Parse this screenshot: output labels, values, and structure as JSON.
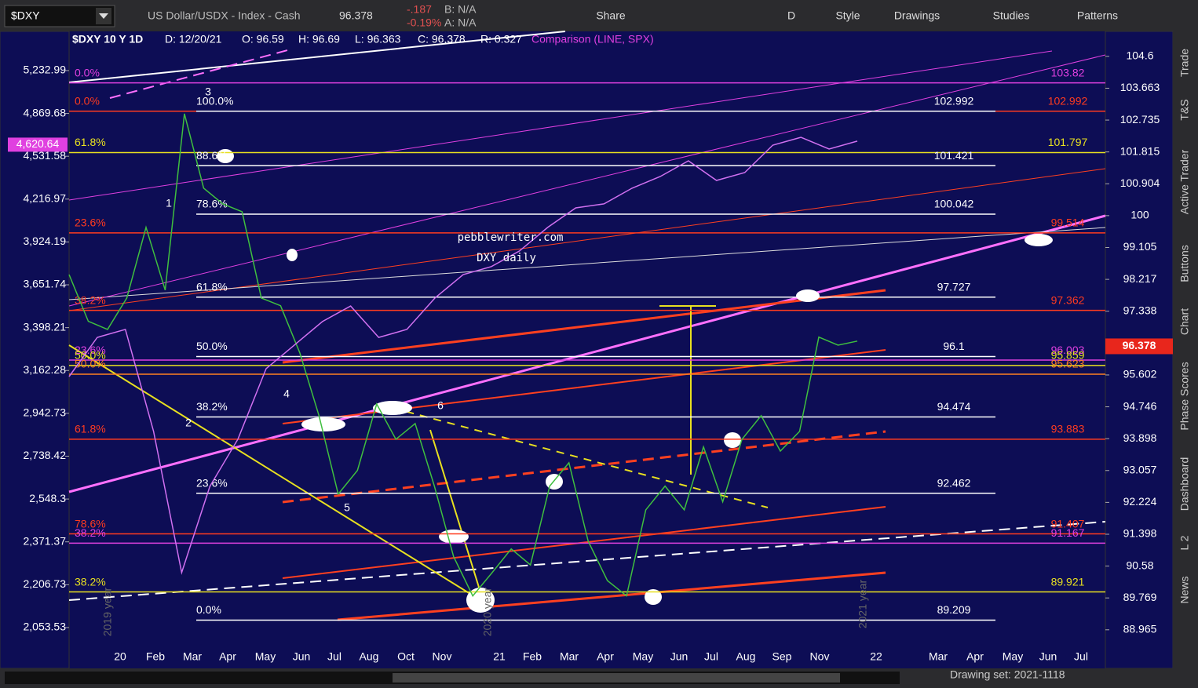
{
  "toolbar": {
    "symbol": "$DXY",
    "description": "US Dollar/USDX - Index - Cash",
    "last": "96.378",
    "change": "-.187",
    "change_pct": "-0.19%",
    "bid": "B: N/A",
    "ask": "A: N/A",
    "buttons": [
      "Share",
      "D",
      "Style",
      "Drawings",
      "Studies",
      "Patterns"
    ]
  },
  "chart_header": {
    "title": "$DXY 10 Y 1D",
    "fields": [
      "D: 12/20/21",
      "O: 96.59",
      "H: 96.69",
      "L: 96.363",
      "C: 96.378",
      "R: 0.327"
    ],
    "comparison": "Comparison (LINE, SPX)"
  },
  "chart_data": {
    "type": "line",
    "yscale": "log",
    "y2scale": "log",
    "ylim": [
      88.47,
      105.34
    ],
    "yticks": [
      104.6,
      103.663,
      102.735,
      101.815,
      100.904,
      100,
      99.105,
      98.217,
      97.338,
      95.602,
      94.746,
      93.898,
      93.057,
      92.224,
      91.398,
      90.58,
      89.769,
      88.965
    ],
    "y2lim": [
      1979,
      5589
    ],
    "y2ticks": [
      {
        "value": 5232.99,
        "label": "5,232.99"
      },
      {
        "value": 4869.68,
        "label": "4,869.68"
      },
      {
        "value": 4531.58,
        "label": "4,531.58"
      },
      {
        "value": 4216.97,
        "label": "4,216.97"
      },
      {
        "value": 3924.19,
        "label": "3,924.19"
      },
      {
        "value": 3651.74,
        "label": "3,651.74"
      },
      {
        "value": 3398.21,
        "label": "3,398.21"
      },
      {
        "value": 3162.28,
        "label": "3,162.28"
      },
      {
        "value": 2942.73,
        "label": "2,942.73"
      },
      {
        "value": 2738.42,
        "label": "2,738.42"
      },
      {
        "value": 2548.3,
        "label": "2,548.3"
      },
      {
        "value": 2371.37,
        "label": "2,371.37"
      },
      {
        "value": 2206.73,
        "label": "2,206.73"
      },
      {
        "value": 2053.53,
        "label": "2,053.53"
      }
    ],
    "x_labels": [
      "20",
      "Feb",
      "Mar",
      "Apr",
      "May",
      "Jun",
      "Jul",
      "Aug",
      "Oct",
      "Nov",
      "21",
      "Feb",
      "Mar",
      "Apr",
      "May",
      "Jun",
      "Jul",
      "Aug",
      "Sep",
      "Nov",
      "22",
      "Mar",
      "Apr",
      "May",
      "Jun",
      "Jul"
    ],
    "series": [
      {
        "color": "#3fbf3f",
        "values": [
          98.35,
          97.06,
          96.84,
          97.7,
          99.67,
          97.92,
          102.92,
          100.78,
          100.33,
          100.11,
          97.7,
          97.49,
          96.2,
          94.51,
          92.44,
          93.06,
          94.82,
          93.88,
          94.3,
          92.65,
          90.82,
          89.82,
          90.41,
          91.02,
          90.61,
          92.65,
          93.26,
          91.22,
          90.21,
          89.82,
          92.03,
          92.65,
          92.03,
          93.68,
          92.24,
          93.88,
          94.51,
          93.57,
          94.09,
          96.63,
          96.41,
          96.52
        ]
      },
      {
        "color": "#d070f0",
        "axis": "y2",
        "values": [
          3130,
          3343,
          3388,
          2855,
          2252,
          2603,
          2818,
          3172,
          3300,
          3433,
          3524,
          3343,
          3388,
          3572,
          3715,
          3765,
          3865,
          4021,
          4155,
          4183,
          4295,
          4380,
          4497,
          4351,
          4409,
          4617,
          4678,
          4587,
          4648
        ]
      }
    ],
    "last_price": {
      "value": 96.378,
      "color": "#e8261c"
    },
    "last_compare": {
      "value": 4620.64,
      "label": "4,620.64",
      "color": "#e040e0"
    },
    "levels": [
      {
        "value": 103.82,
        "color": "#e040e0",
        "label": "0.0%"
      },
      {
        "value": 102.992,
        "color": "#ff3b1f",
        "label": "0.0%"
      },
      {
        "value": 102.992,
        "color": "#ffffff",
        "label": "100.0%"
      },
      {
        "value": 101.797,
        "color": "#e8e020",
        "label": "61.8%"
      },
      {
        "value": 101.421,
        "color": "#ffffff",
        "label": "88.6%"
      },
      {
        "value": 100.042,
        "color": "#ffffff",
        "label": "78.6%"
      },
      {
        "value": 99.514,
        "color": "#ff3b1f",
        "label": "23.6%"
      },
      {
        "value": 97.727,
        "color": "#ffffff",
        "label": "61.8%"
      },
      {
        "value": 97.362,
        "color": "#ff3b1f",
        "label": "38.2%"
      },
      {
        "value": 96.1,
        "color": "#ffffff",
        "label": "50.0%"
      },
      {
        "value": 96.003,
        "color": "#e040e0",
        "label": "23.6%"
      },
      {
        "value": 95.859,
        "color": "#e8e020",
        "label": "50.0%"
      },
      {
        "value": 95.623,
        "color": "#ff8020",
        "label": "50.0%"
      },
      {
        "value": 94.474,
        "color": "#ffffff",
        "label": "38.2%"
      },
      {
        "value": 93.883,
        "color": "#ff3b1f",
        "label": "61.8%"
      },
      {
        "value": 92.462,
        "color": "#ffffff",
        "label": "23.6%"
      },
      {
        "value": 91.407,
        "color": "#ff3b1f",
        "label": "78.6%"
      },
      {
        "value": 91.167,
        "color": "#e040e0",
        "label": "38.2%"
      },
      {
        "value": 89.921,
        "color": "#e8e020",
        "label": "38.2%"
      },
      {
        "value": 89.209,
        "color": "#ffffff",
        "label": "0.0%"
      }
    ],
    "annotations": [
      "pebblewriter.com",
      "DXY daily",
      "1",
      "2",
      "3",
      "4",
      "5",
      "6",
      "2019 year",
      "2020 year",
      "2021 year"
    ]
  },
  "side_tabs": [
    "Trade",
    "T&S",
    "Active Trader",
    "Buttons",
    "Chart",
    "Phase Scores",
    "Dashboard",
    "L 2",
    "News"
  ],
  "footer": {
    "drawing_set": "Drawing set: 2021-1118"
  }
}
